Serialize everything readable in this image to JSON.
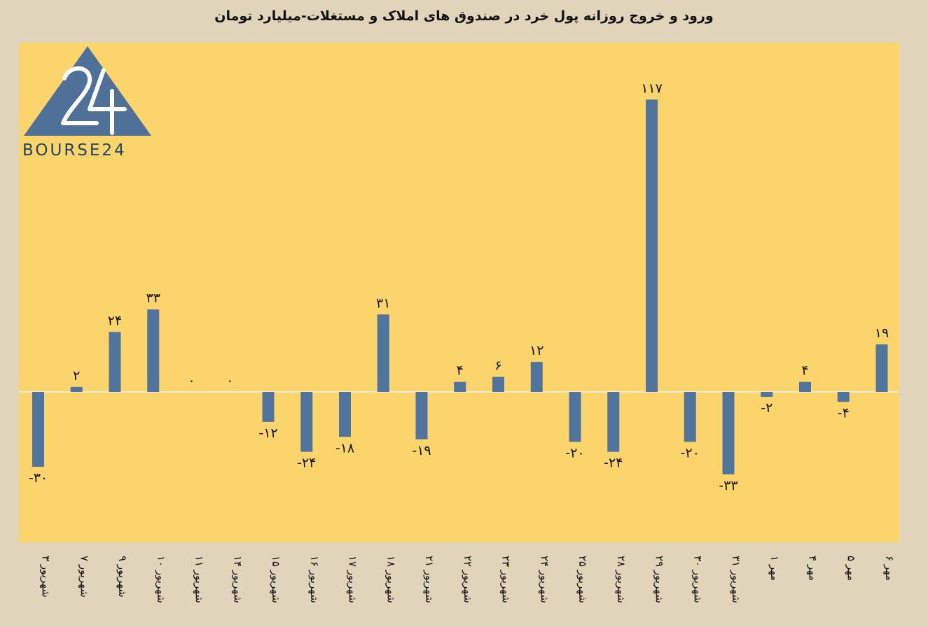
{
  "title": "ورود و خروج روزانه پول خرد در صندوق های املاک و مستغلات-میلیارد تومان",
  "brand": "BOURSE24",
  "colors": {
    "bar": "#50749e",
    "plot_bg": "#fbd46c",
    "page_bg": "#e0d5ba",
    "logo": "#4f7099"
  },
  "chart_data": {
    "type": "bar",
    "title": "ورود و خروج روزانه پول خرد در صندوق های املاک و مستغلات-میلیارد تومان",
    "xlabel": "",
    "ylabel": "",
    "ylim": [
      -38,
      126
    ],
    "grid": false,
    "categories": [
      "۳ شهریور",
      "۷ شهریور",
      "۹ شهریور",
      "۱۰ شهریور",
      "۱۱ شهریور",
      "۱۴ شهریور",
      "۱۵ شهریور",
      "۱۶ شهریور",
      "۱۷ شهریور",
      "۱۸ شهریور",
      "۲۱ شهریور",
      "۲۲ شهریور",
      "۲۳ شهریور",
      "۲۴ شهریور",
      "۲۵ شهریور",
      "۲۸ شهریور",
      "۲۹ شهریور",
      "۳۰ شهریور",
      "۳۱ شهریور",
      "۱ مهر",
      "۴ مهر",
      "۵ مهر",
      "۶ مهر"
    ],
    "values": [
      -30,
      2,
      24,
      33,
      0,
      0,
      -12,
      -24,
      -18,
      31,
      -19,
      4,
      6,
      12,
      -20,
      -24,
      117,
      -20,
      -33,
      -2,
      4,
      -4,
      19
    ],
    "data_labels": [
      "-۳۰",
      "۲",
      "۲۴",
      "۳۳",
      "۰",
      "۰",
      "-۱۲",
      "-۲۴",
      "-۱۸",
      "۳۱",
      "-۱۹",
      "۴",
      "۶",
      "۱۲",
      "-۲۰",
      "-۲۴",
      "۱۱۷",
      "-۲۰",
      "-۳۳",
      "-۲",
      "۴",
      "-۴",
      "۱۹"
    ]
  }
}
